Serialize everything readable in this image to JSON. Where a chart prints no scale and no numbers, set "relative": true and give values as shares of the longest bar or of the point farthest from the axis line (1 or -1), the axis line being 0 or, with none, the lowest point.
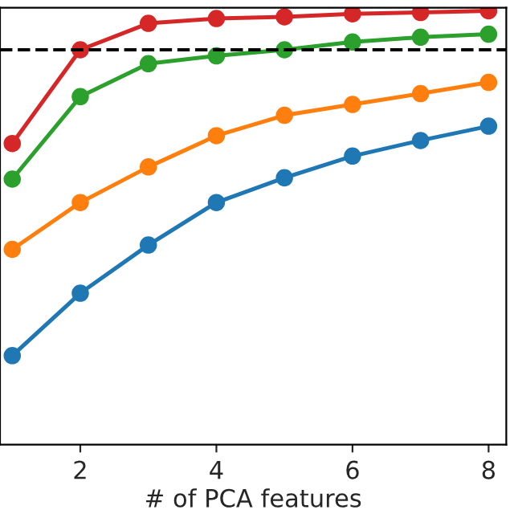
{
  "chart_data": {
    "type": "line",
    "xlabel": "# of PCA features",
    "relative": true,
    "tick_labels": "x",
    "marker": "circle",
    "line_style": "solid",
    "grid": false,
    "xlim": [
      0.82,
      8.26
    ],
    "xticks": [
      2,
      4,
      6,
      8
    ],
    "x": [
      1,
      2,
      3,
      4,
      5,
      6,
      7,
      8
    ],
    "series": [
      {
        "color": "#d62728",
        "values": [
          0.694,
          0.91,
          0.971,
          0.982,
          0.986,
          0.993,
          0.996,
          1.0
        ]
      },
      {
        "color": "#2ca02c",
        "values": [
          0.612,
          0.802,
          0.878,
          0.896,
          0.91,
          0.928,
          0.939,
          0.946
        ]
      },
      {
        "color": "#ff7f0e",
        "values": [
          0.45,
          0.558,
          0.64,
          0.712,
          0.759,
          0.784,
          0.809,
          0.835
        ]
      },
      {
        "color": "#1f77b4",
        "values": [
          0.205,
          0.349,
          0.46,
          0.558,
          0.615,
          0.665,
          0.701,
          0.734
        ]
      }
    ],
    "ref_lines": [
      {
        "axis": "y",
        "value": 0.91,
        "color": "#000000",
        "line_style": "dashed"
      }
    ]
  }
}
